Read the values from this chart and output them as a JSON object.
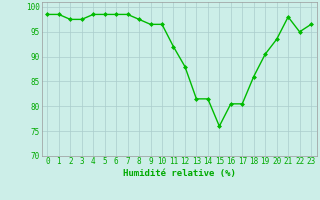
{
  "x": [
    0,
    1,
    2,
    3,
    4,
    5,
    6,
    7,
    8,
    9,
    10,
    11,
    12,
    13,
    14,
    15,
    16,
    17,
    18,
    19,
    20,
    21,
    22,
    23
  ],
  "y": [
    98.5,
    98.5,
    97.5,
    97.5,
    98.5,
    98.5,
    98.5,
    98.5,
    97.5,
    96.5,
    96.5,
    92.0,
    88.0,
    81.5,
    81.5,
    76.0,
    80.5,
    80.5,
    86.0,
    90.5,
    93.5,
    98.0,
    95.0,
    96.5
  ],
  "line_color": "#00bb00",
  "marker": "D",
  "marker_size": 2,
  "bg_color": "#cceee8",
  "grid_color": "#aacccc",
  "tick_color": "#00aa00",
  "label_color": "#00aa00",
  "xlabel": "Humidité relative (%)",
  "ylim": [
    70,
    101
  ],
  "xlim": [
    -0.5,
    23.5
  ],
  "yticks": [
    70,
    75,
    80,
    85,
    90,
    95,
    100
  ],
  "xticks": [
    0,
    1,
    2,
    3,
    4,
    5,
    6,
    7,
    8,
    9,
    10,
    11,
    12,
    13,
    14,
    15,
    16,
    17,
    18,
    19,
    20,
    21,
    22,
    23
  ],
  "tick_fontsize": 5.5,
  "xlabel_fontsize": 6.5,
  "linewidth": 1.0
}
